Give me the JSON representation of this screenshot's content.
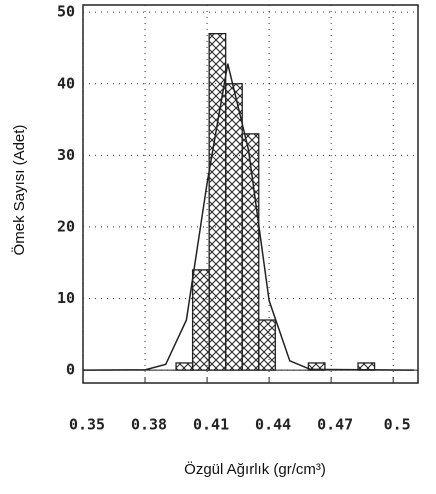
{
  "chart_data": {
    "type": "histogram",
    "xlabel": "Özgül Ağırlık (gr/cm³)",
    "ylabel": "Ömek Sayısı (Adet)",
    "bins": [
      0.395,
      0.403,
      0.411,
      0.419,
      0.427,
      0.435,
      0.443,
      0.451,
      0.459,
      0.467,
      0.475,
      0.483,
      0.491
    ],
    "values": [
      1,
      14,
      47,
      40,
      33,
      7,
      0,
      0,
      1,
      0,
      0,
      1
    ],
    "fit": {
      "x": [
        0.35,
        0.38,
        0.39,
        0.4,
        0.41,
        0.42,
        0.43,
        0.44,
        0.45,
        0.46,
        0.51
      ],
      "values": [
        0,
        0.04,
        0.8,
        7.0,
        26.1,
        42.8,
        30.8,
        9.7,
        1.3,
        0.1,
        0
      ]
    },
    "xlim": [
      0.35,
      0.512
    ],
    "ylim": [
      -1.8,
      51
    ],
    "xticks": [
      {
        "value": 0.35,
        "label": "0.35"
      },
      {
        "value": 0.38,
        "label": "0.38"
      },
      {
        "value": 0.41,
        "label": "0.41"
      },
      {
        "value": 0.44,
        "label": "0.44"
      },
      {
        "value": 0.47,
        "label": "0.47"
      },
      0.5
    ],
    "yticks": [
      0,
      10,
      20,
      30,
      40,
      50
    ],
    "grid": true,
    "color": "#222222"
  }
}
